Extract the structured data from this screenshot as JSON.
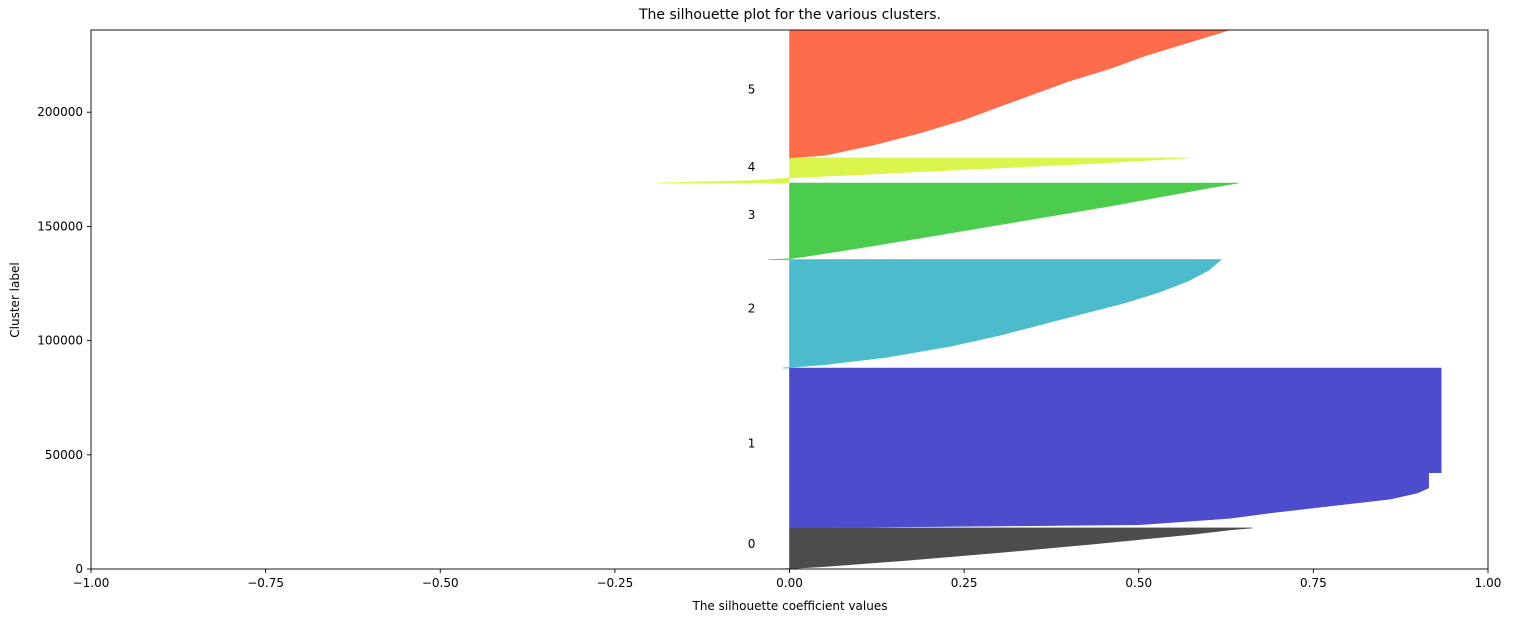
{
  "chart_data": {
    "type": "area",
    "title": "The silhouette plot for the various clusters.",
    "xlabel": "The silhouette coefficient values",
    "ylabel": "Cluster label",
    "xlim": [
      -1,
      1
    ],
    "ylim": [
      0,
      236000
    ],
    "xticks": [
      -1,
      -0.75,
      -0.5,
      -0.25,
      0,
      0.25,
      0.5,
      0.75,
      1
    ],
    "xtick_labels": [
      "−1.00",
      "−0.75",
      "−0.50",
      "−0.25",
      "0.00",
      "0.25",
      "0.50",
      "0.75",
      "1.00"
    ],
    "yticks": [
      0,
      50000,
      100000,
      150000,
      200000
    ],
    "ytick_labels": [
      "0",
      "50000",
      "100000",
      "150000",
      "200000"
    ],
    "grid": false,
    "clusters": [
      {
        "label": "0",
        "color": "#4c4c4c",
        "y_start": 0,
        "y_end": 18000,
        "label_y": 11000,
        "profile": [
          [
            0,
            -0.015
          ],
          [
            0.01,
            0.0
          ],
          [
            0.06,
            0.05
          ],
          [
            0.2,
            0.16
          ],
          [
            0.4,
            0.3
          ],
          [
            0.6,
            0.43
          ],
          [
            0.75,
            0.52
          ],
          [
            0.85,
            0.58
          ],
          [
            0.95,
            0.63
          ],
          [
            1.0,
            0.663
          ]
        ]
      },
      {
        "label": "1",
        "color": "#4c4ccc",
        "y_start": 18000,
        "y_end": 88000,
        "label_y": 55000,
        "profile": [
          [
            0,
            0.0
          ],
          [
            0.02,
            0.5
          ],
          [
            0.06,
            0.63
          ],
          [
            0.1,
            0.7
          ],
          [
            0.13,
            0.76
          ],
          [
            0.16,
            0.82
          ],
          [
            0.18,
            0.86
          ],
          [
            0.2,
            0.88
          ],
          [
            0.22,
            0.9
          ],
          [
            0.25,
            0.915
          ],
          [
            0.345,
            0.915
          ],
          [
            0.345,
            0.933
          ],
          [
            1.0,
            0.933
          ]
        ]
      },
      {
        "label": "2",
        "color": "#4cbccc",
        "y_start": 88000,
        "y_end": 135500,
        "label_y": 114000,
        "profile": [
          [
            0,
            -0.01
          ],
          [
            0.005,
            0.0
          ],
          [
            0.03,
            0.05
          ],
          [
            0.1,
            0.14
          ],
          [
            0.2,
            0.23
          ],
          [
            0.3,
            0.3
          ],
          [
            0.4,
            0.36
          ],
          [
            0.5,
            0.42
          ],
          [
            0.6,
            0.48
          ],
          [
            0.7,
            0.53
          ],
          [
            0.8,
            0.57
          ],
          [
            0.9,
            0.6
          ],
          [
            1.0,
            0.618
          ]
        ]
      },
      {
        "label": "3",
        "color": "#4ccc4c",
        "y_start": 135500,
        "y_end": 169000,
        "label_y": 155000,
        "profile": [
          [
            0,
            -0.03
          ],
          [
            0.01,
            0.0
          ],
          [
            0.05,
            0.03
          ],
          [
            0.15,
            0.1
          ],
          [
            0.3,
            0.2
          ],
          [
            0.5,
            0.33
          ],
          [
            0.7,
            0.46
          ],
          [
            0.85,
            0.55
          ],
          [
            0.95,
            0.61
          ],
          [
            1.0,
            0.643
          ]
        ]
      },
      {
        "label": "4",
        "color": "#dcf54c",
        "y_start": 169000,
        "y_end": 180000,
        "label_y": 176000,
        "profile": [
          [
            0,
            -0.19
          ],
          [
            0.1,
            -0.05
          ],
          [
            0.2,
            0.0
          ],
          [
            0.4,
            0.15
          ],
          [
            0.6,
            0.3
          ],
          [
            0.8,
            0.45
          ],
          [
            1.0,
            0.571
          ]
        ]
      },
      {
        "label": "5",
        "color": "#ff6c4c",
        "y_start": 180000,
        "y_end": 236000,
        "label_y": 210000,
        "profile": [
          [
            0,
            0.0
          ],
          [
            0.02,
            0.05
          ],
          [
            0.1,
            0.12
          ],
          [
            0.2,
            0.19
          ],
          [
            0.3,
            0.25
          ],
          [
            0.4,
            0.3
          ],
          [
            0.5,
            0.35
          ],
          [
            0.6,
            0.4
          ],
          [
            0.7,
            0.46
          ],
          [
            0.8,
            0.51
          ],
          [
            0.9,
            0.57
          ],
          [
            1.0,
            0.63
          ]
        ]
      }
    ]
  }
}
